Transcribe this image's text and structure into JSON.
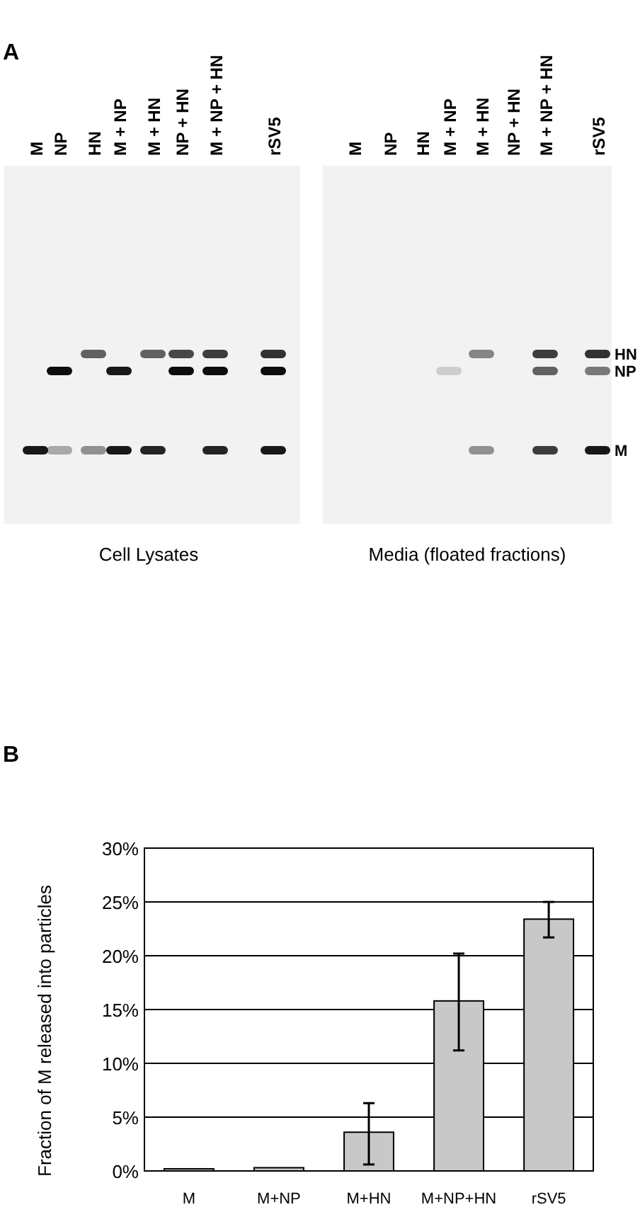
{
  "chart_data": [
    {
      "type": "other",
      "title": "A",
      "annotations": [
        "M",
        "NP",
        "HN",
        "M + NP",
        "M + HN",
        "NP + HN",
        "M + NP + HN",
        "rSV5",
        "M",
        "NP",
        "HN",
        "M + NP",
        "M + HN",
        "NP + HN",
        "M + NP + HN",
        "rSV5",
        "Cell Lysates",
        "Media (floated fractions)",
        "HN",
        "NP",
        "M"
      ]
    },
    {
      "type": "bar",
      "title": "B",
      "ylabel": "Fraction of M released into particles",
      "categories": [
        "M",
        "M+NP",
        "M+HN",
        "M+NP+HN",
        "rSV5"
      ],
      "values": [
        0.2,
        0.3,
        3.6,
        15.8,
        23.4
      ],
      "errors": [
        null,
        null,
        [
          0.6,
          6.3
        ],
        [
          11.2,
          20.2
        ],
        [
          21.7,
          25.0
        ]
      ],
      "color": "#c8c8c8",
      "ylim": [
        0,
        30
      ],
      "yticks": [
        {
          "value": 0,
          "label": "0%"
        },
        {
          "value": 5,
          "label": "5%"
        },
        {
          "value": 10,
          "label": "10%"
        },
        {
          "value": 15,
          "label": "15%"
        },
        {
          "value": 20,
          "label": "20%"
        },
        {
          "value": 25,
          "label": "25%"
        },
        {
          "value": 30,
          "label": "30%"
        }
      ],
      "grid": "y"
    }
  ]
}
